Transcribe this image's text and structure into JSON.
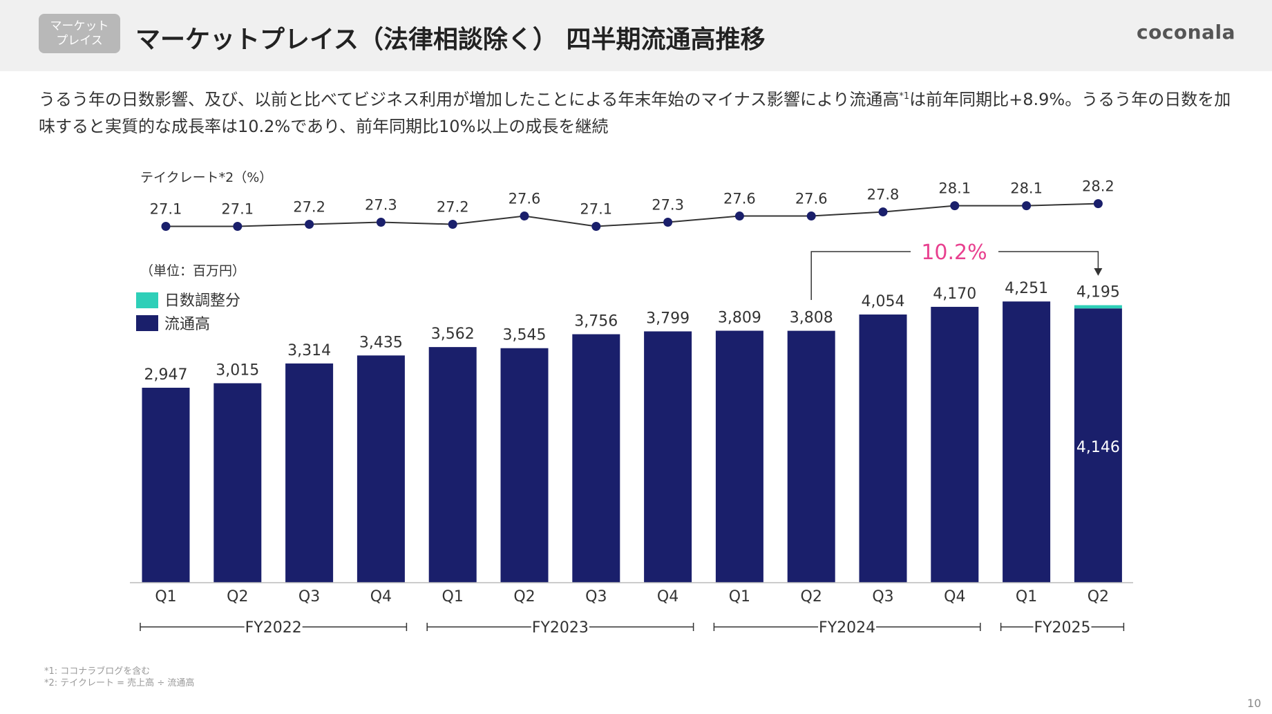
{
  "header": {
    "badge": "マーケット\nプレイス",
    "title": "マーケットプレイス（法律相談除く） 四半期流通高推移",
    "logo": "coconala"
  },
  "lead": {
    "text_part1": "うるう年の日数影響、及び、以前と比べてビジネス利用が増加したことによる年末年始のマイナス影響により流通高",
    "sup": "*1",
    "text_part2": "は前年同期比+8.9%。うるう年の日数を加味すると実質的な成長率は10.2%であり、前年同期比10%以上の成長を継続"
  },
  "footnotes": [
    "*1: ココナラブログを含む",
    "*2: テイクレート = 売上高 ÷ 流通高"
  ],
  "page_number": "10",
  "colors": {
    "navy": "#1a1f6b",
    "teal": "#2ecfb8",
    "pink": "#e8408f",
    "line": "#333333"
  },
  "chart_data": [
    {
      "type": "line",
      "title": "テイクレート*2（%）",
      "categories": [
        "Q1",
        "Q2",
        "Q3",
        "Q4",
        "Q1",
        "Q2",
        "Q3",
        "Q4",
        "Q1",
        "Q2",
        "Q3",
        "Q4",
        "Q1",
        "Q2"
      ],
      "values": [
        27.1,
        27.1,
        27.2,
        27.3,
        27.2,
        27.6,
        27.1,
        27.3,
        27.6,
        27.6,
        27.8,
        28.1,
        28.1,
        28.2
      ],
      "labels": [
        "27.1",
        "27.1",
        "27.2",
        "27.3",
        "27.2",
        "27.6",
        "27.1",
        "27.3",
        "27.6",
        "27.6",
        "27.8",
        "28.1",
        "28.1",
        "28.2"
      ]
    },
    {
      "type": "bar",
      "unit_label": "（単位：百万円）",
      "categories": [
        "Q1",
        "Q2",
        "Q3",
        "Q4",
        "Q1",
        "Q2",
        "Q3",
        "Q4",
        "Q1",
        "Q2",
        "Q3",
        "Q4",
        "Q1",
        "Q2"
      ],
      "groups": [
        {
          "label": "FY2022",
          "quarters": 4
        },
        {
          "label": "FY2023",
          "quarters": 4
        },
        {
          "label": "FY2024",
          "quarters": 4
        },
        {
          "label": "FY2025",
          "quarters": 2
        }
      ],
      "stacked": true,
      "series": [
        {
          "name": "流通高",
          "color": "#1a1f6b",
          "values": [
            2947,
            3015,
            3314,
            3435,
            3562,
            3545,
            3756,
            3799,
            3809,
            3808,
            4054,
            4170,
            4251,
            4146
          ]
        },
        {
          "name": "日数調整分",
          "color": "#2ecfb8",
          "values": [
            0,
            0,
            0,
            0,
            0,
            0,
            0,
            0,
            0,
            0,
            0,
            0,
            0,
            49
          ]
        }
      ],
      "total_labels": [
        "2,947",
        "3,015",
        "3,314",
        "3,435",
        "3,562",
        "3,545",
        "3,756",
        "3,799",
        "3,809",
        "3,808",
        "4,054",
        "4,170",
        "4,251",
        "4,195"
      ],
      "inner_label": "4,146",
      "legend": [
        "日数調整分",
        "流通高"
      ],
      "annotation": {
        "text": "10.2%",
        "from_index": 9,
        "to_index": 13
      }
    }
  ]
}
